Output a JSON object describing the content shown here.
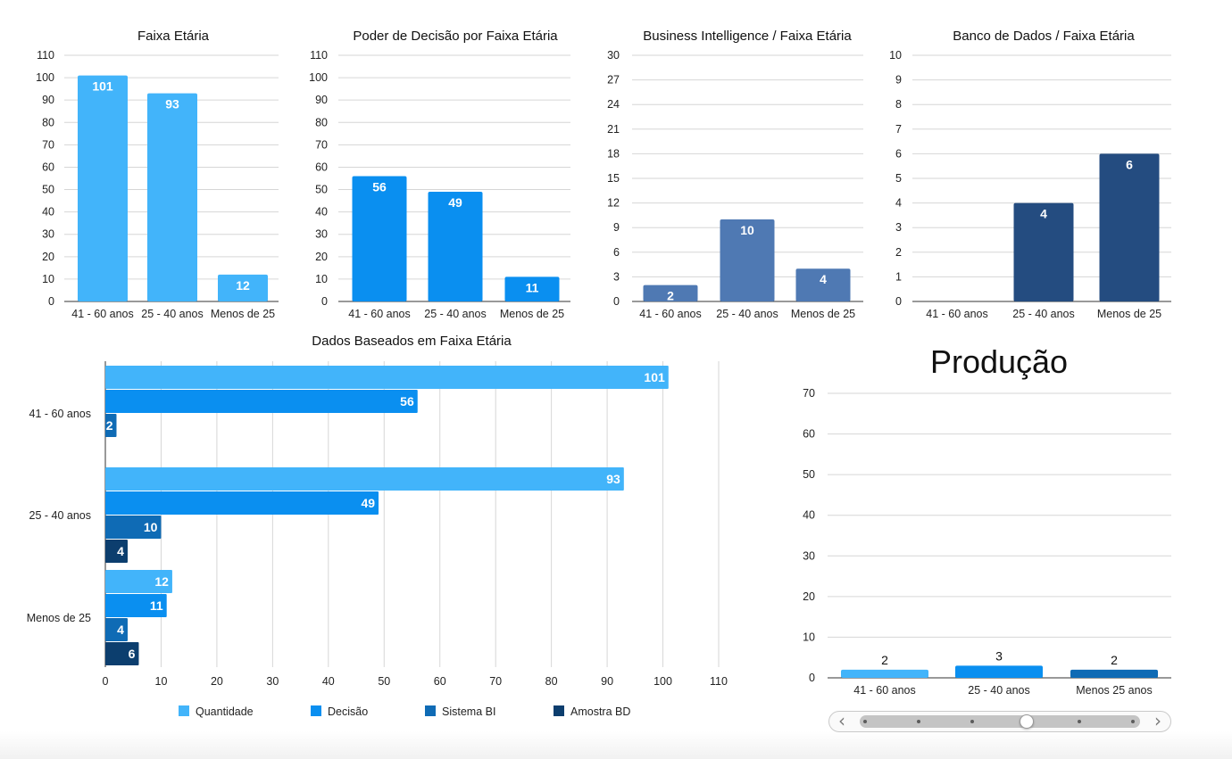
{
  "colors": {
    "quantidade": "#42b4fa",
    "decisao": "#0a8ff0",
    "sistema_bi": "#0f6bb5",
    "amostra_bd": "#0c3e6e",
    "bi_small": "#4f79b3",
    "bd_small": "#244c80",
    "producao_1": "#42b4fa",
    "producao_2": "#0a8ff0",
    "producao_3": "#0f6bb5",
    "grid": "#d6d6d6",
    "axis": "#333333"
  },
  "chart_data": [
    {
      "id": "faixa-etaria",
      "type": "bar",
      "title": "Faixa Etária",
      "categories": [
        "41 - 60 anos",
        "25 - 40 anos",
        "Menos de 25"
      ],
      "values": [
        101,
        93,
        12
      ],
      "ylim": [
        0,
        110
      ],
      "yticks": [
        "0",
        "10",
        "20",
        "30",
        "40",
        "50",
        "60",
        "70",
        "80",
        "90",
        "100",
        "110"
      ],
      "color": "quantidade",
      "grid": true
    },
    {
      "id": "poder-decisao",
      "type": "bar",
      "title": "Poder de Decisão por Faixa Etária",
      "categories": [
        "41 - 60 anos",
        "25 - 40 anos",
        "Menos de 25"
      ],
      "values": [
        56,
        49,
        11
      ],
      "ylim": [
        0,
        110
      ],
      "yticks": [
        "0",
        "10",
        "20",
        "30",
        "40",
        "50",
        "60",
        "70",
        "80",
        "90",
        "100",
        "110"
      ],
      "color": "decisao",
      "grid": true
    },
    {
      "id": "business-intelligence",
      "type": "bar",
      "title": "Business Intelligence / Faixa Etária",
      "categories": [
        "41 - 60 anos",
        "25 - 40 anos",
        "Menos de 25"
      ],
      "values": [
        2,
        10,
        4
      ],
      "ylim": [
        0,
        30
      ],
      "yticks": [
        "0",
        "3",
        "6",
        "9",
        "12",
        "15",
        "18",
        "21",
        "24",
        "27",
        "30"
      ],
      "color": "bi_small",
      "grid": true
    },
    {
      "id": "banco-de-dados",
      "type": "bar",
      "title": "Banco de Dados / Faixa Etária",
      "categories": [
        "41 - 60 anos",
        "25 - 40 anos",
        "Menos de 25"
      ],
      "values": [
        0,
        4,
        6
      ],
      "ylim": [
        0,
        10
      ],
      "yticks": [
        "0",
        "1",
        "2",
        "3",
        "4",
        "5",
        "6",
        "7",
        "8",
        "9",
        "10"
      ],
      "color": "bd_small",
      "grid": true
    },
    {
      "id": "dados-baseados",
      "type": "bar",
      "orientation": "horizontal",
      "title": "Dados Baseados em Faixa Etária",
      "categories": [
        "41 - 60 anos",
        "25 - 40 anos",
        "Menos de 25"
      ],
      "series": [
        {
          "name": "Quantidade",
          "values": [
            101,
            93,
            12
          ],
          "color": "quantidade"
        },
        {
          "name": "Decisão",
          "values": [
            56,
            49,
            11
          ],
          "color": "decisao"
        },
        {
          "name": "Sistema BI",
          "values": [
            2,
            10,
            4
          ],
          "color": "sistema_bi"
        },
        {
          "name": "Amostra BD",
          "values": [
            null,
            4,
            6
          ],
          "color": "amostra_bd"
        }
      ],
      "xlim": [
        0,
        110
      ],
      "xticks": [
        "0",
        "10",
        "20",
        "30",
        "40",
        "50",
        "60",
        "70",
        "80",
        "90",
        "100",
        "110"
      ],
      "legend": "bottom",
      "grid": true
    },
    {
      "id": "producao",
      "type": "bar",
      "title": "Produção",
      "categories": [
        "41 - 60 anos",
        "25 - 40 anos",
        "Menos 25 anos"
      ],
      "values": [
        2,
        3,
        2
      ],
      "ylim": [
        0,
        70
      ],
      "yticks": [
        "0",
        "10",
        "20",
        "30",
        "40",
        "50",
        "60",
        "70"
      ],
      "colors": [
        "producao_1",
        "producao_2",
        "producao_3"
      ],
      "grid": true
    }
  ],
  "slider": {
    "left_icon": "chevron-left-icon",
    "right_icon": "chevron-right-icon",
    "left_glyph": "‹",
    "right_glyph": "›",
    "stops": 6,
    "selected_index": 3
  }
}
